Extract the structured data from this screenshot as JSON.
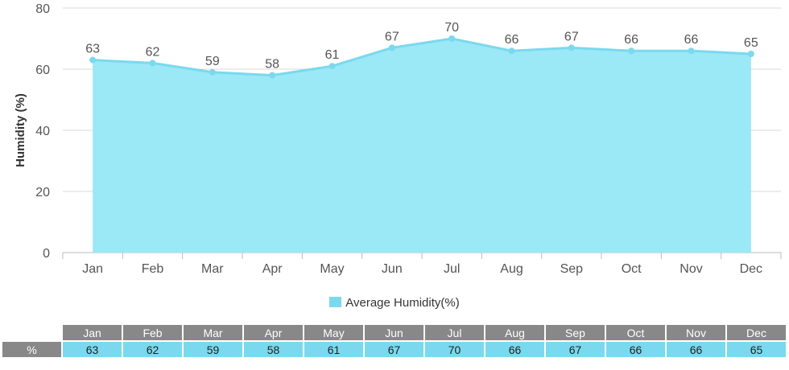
{
  "chart_data": {
    "type": "area",
    "categories": [
      "Jan",
      "Feb",
      "Mar",
      "Apr",
      "May",
      "Jun",
      "Jul",
      "Aug",
      "Sep",
      "Oct",
      "Nov",
      "Dec"
    ],
    "series": [
      {
        "name": "Average Humidity(%)",
        "values": [
          63,
          62,
          59,
          58,
          61,
          67,
          70,
          66,
          67,
          66,
          66,
          65
        ]
      }
    ],
    "title": "",
    "xlabel": "",
    "ylabel": "Humidity (%)",
    "ylim": [
      0,
      80
    ],
    "yticks": [
      0,
      20,
      40,
      60,
      80
    ],
    "grid": true,
    "legend_position": "bottom-center",
    "data_labels": true,
    "colors": {
      "fill": "#9be8f6",
      "line": "#7ad9ee",
      "grid": "#d8d8d8",
      "table_header": "#888888"
    }
  },
  "table": {
    "row_label": "%"
  }
}
